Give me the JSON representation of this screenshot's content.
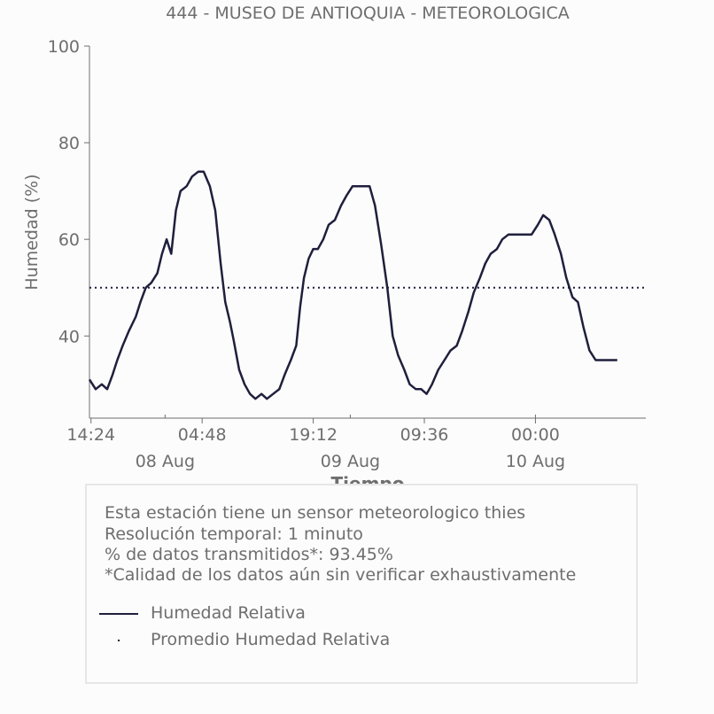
{
  "chart_data": {
    "type": "line",
    "title": "444 - MUSEO DE ANTIOQUIA - METEOROLOGICA",
    "xlabel": "Tiempo",
    "ylabel": "Humedad (%)",
    "ylim": [
      23,
      100
    ],
    "y_ticks": [
      40,
      60,
      80,
      100
    ],
    "x_tick_labels": [
      "14:24",
      "04:48",
      "19:12",
      "09:36",
      "00:00"
    ],
    "x_tick_hours": [
      14.4,
      28.8,
      43.2,
      57.6,
      72.0
    ],
    "date_labels": [
      "08 Aug",
      "09 Aug",
      "10 Aug"
    ],
    "date_label_hours": [
      24,
      48,
      72
    ],
    "xlim_hours": [
      14.2,
      86.3
    ],
    "grid": false,
    "legend_placement": "below chart",
    "series": [
      {
        "name": "Humedad Relativa",
        "style": "solid",
        "color": "#1f1f3d",
        "x_hours": [
          14.2,
          15.0,
          15.8,
          16.5,
          17.2,
          17.8,
          18.5,
          19.3,
          20.2,
          20.8,
          21.5,
          22.2,
          23.0,
          23.6,
          24.2,
          24.8,
          25.4,
          26.0,
          26.8,
          27.5,
          28.3,
          29.0,
          29.8,
          30.5,
          31.2,
          31.8,
          32.4,
          32.9,
          33.6,
          34.3,
          35.0,
          35.7,
          36.5,
          37.2,
          38.0,
          38.8,
          39.5,
          40.3,
          41.0,
          41.5,
          42.0,
          42.6,
          43.2,
          43.8,
          44.5,
          45.2,
          46.0,
          46.8,
          47.5,
          48.3,
          49.0,
          49.8,
          50.5,
          51.2,
          52.0,
          52.8,
          53.5,
          54.2,
          55.0,
          55.7,
          56.5,
          57.2,
          57.9,
          58.6,
          59.4,
          60.2,
          61.0,
          61.8,
          62.5,
          63.3,
          64.0,
          64.8,
          65.5,
          66.2,
          67.0,
          67.7,
          68.5,
          69.2,
          70.0,
          70.8,
          71.5,
          72.3,
          73.0,
          73.8,
          74.5,
          75.3,
          76.0,
          76.8,
          77.5,
          78.2,
          79.0,
          79.8,
          80.5,
          81.0,
          81.6,
          82.2,
          82.6
        ],
        "values": [
          31,
          29,
          30,
          29,
          32,
          35,
          38,
          41,
          44,
          47,
          50,
          51,
          53,
          57,
          60,
          57,
          66,
          70,
          71,
          73,
          74,
          74,
          71,
          66,
          55,
          47,
          43,
          39,
          33,
          30,
          28,
          27,
          28,
          27,
          28,
          29,
          32,
          35,
          38,
          46,
          52,
          56,
          58,
          58,
          60,
          63,
          64,
          67,
          69,
          71,
          71,
          71,
          71,
          67,
          59,
          50,
          40,
          36,
          33,
          30,
          29,
          29,
          28,
          30,
          33,
          35,
          37,
          38,
          41,
          45,
          49,
          52,
          55,
          57,
          58,
          60,
          61,
          61,
          61,
          61,
          61,
          63,
          65,
          64,
          61,
          57,
          52,
          48,
          47,
          42,
          37,
          35,
          35,
          35,
          35,
          35,
          35
        ]
      },
      {
        "name": "Promedio Humedad Relativa",
        "style": "dotted",
        "color": "#1f1f3d",
        "values": [
          50
        ]
      }
    ]
  },
  "info": {
    "sensor": "Esta estación tiene un sensor meteorologico thies",
    "resolution": "Resolución temporal: 1 minuto",
    "transmitted": "% de datos transmitidos*: 93.45%",
    "note": "*Calidad de los datos aún sin verificar exhaustivamente"
  },
  "legend": {
    "line_label": "Humedad Relativa",
    "avg_label": "Promedio Humedad Relativa"
  }
}
